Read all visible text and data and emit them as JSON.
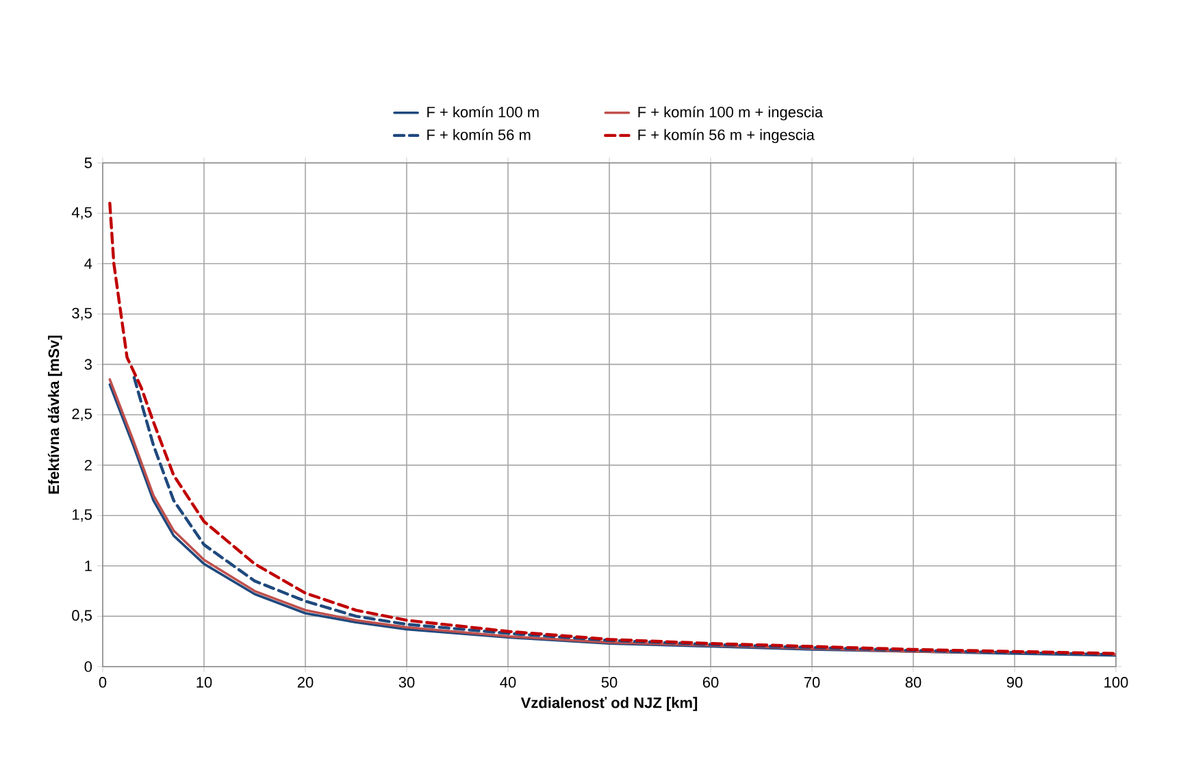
{
  "chart_data": {
    "type": "line",
    "xlabel": "Vzdialenosť od NJZ    [km]",
    "ylabel": "Efektívna dávka [mSv]",
    "xlim": [
      0,
      100
    ],
    "xticks": [
      0,
      10,
      20,
      30,
      40,
      50,
      60,
      70,
      80,
      90,
      100
    ],
    "ylim": [
      0,
      5
    ],
    "yticks": [
      0,
      {
        "value": 0.5,
        "label": "0,5"
      },
      1,
      {
        "value": 1.5,
        "label": "1,5"
      },
      2,
      {
        "value": 2.5,
        "label": "2,5"
      },
      3,
      {
        "value": 3.5,
        "label": "3,5"
      },
      4,
      {
        "value": 4.5,
        "label": "4,5"
      },
      5
    ],
    "grid": true,
    "legend": "top",
    "marker": "none",
    "series": [
      {
        "name": "F + komín 100 m",
        "color": "#1f497d",
        "line_style": "solid",
        "x": [
          0.7,
          3,
          5,
          7,
          10,
          15,
          20,
          25,
          30,
          40,
          50,
          60,
          70,
          80,
          90,
          100
        ],
        "values": [
          2.8,
          2.2,
          1.65,
          1.3,
          1.02,
          0.72,
          0.53,
          0.44,
          0.37,
          0.29,
          0.23,
          0.2,
          0.17,
          0.15,
          0.13,
          0.11
        ]
      },
      {
        "name": "F + komín 100 m + ingescia",
        "color": "#c0504d",
        "line_style": "solid",
        "x": [
          0.7,
          3,
          5,
          7,
          10,
          15,
          20,
          25,
          30,
          40,
          50,
          60,
          70,
          80,
          90,
          100
        ],
        "values": [
          2.85,
          2.25,
          1.7,
          1.35,
          1.06,
          0.75,
          0.56,
          0.46,
          0.39,
          0.3,
          0.24,
          0.21,
          0.18,
          0.15,
          0.14,
          0.12
        ]
      },
      {
        "name": "F + komín 56 m",
        "color": "#1f497d",
        "line_style": "dashed",
        "x": [
          3.1,
          5,
          7,
          10,
          15,
          20,
          25,
          30,
          40,
          50,
          60,
          70,
          80,
          90,
          100
        ],
        "values": [
          2.87,
          2.2,
          1.65,
          1.21,
          0.85,
          0.65,
          0.5,
          0.42,
          0.33,
          0.26,
          0.22,
          0.19,
          0.16,
          0.14,
          0.12
        ]
      },
      {
        "name": "F + komín 56 m + ingescia",
        "color": "#c00000",
        "line_style": "dashed",
        "x": [
          0.7,
          1.1,
          1.8,
          2.4,
          3.8,
          5,
          7,
          10,
          15,
          20,
          25,
          30,
          40,
          50,
          60,
          70,
          80,
          90,
          100
        ],
        "values": [
          4.6,
          4.0,
          3.5,
          3.07,
          2.77,
          2.43,
          1.9,
          1.44,
          1.02,
          0.73,
          0.56,
          0.46,
          0.35,
          0.27,
          0.23,
          0.2,
          0.17,
          0.15,
          0.13
        ]
      }
    ]
  }
}
